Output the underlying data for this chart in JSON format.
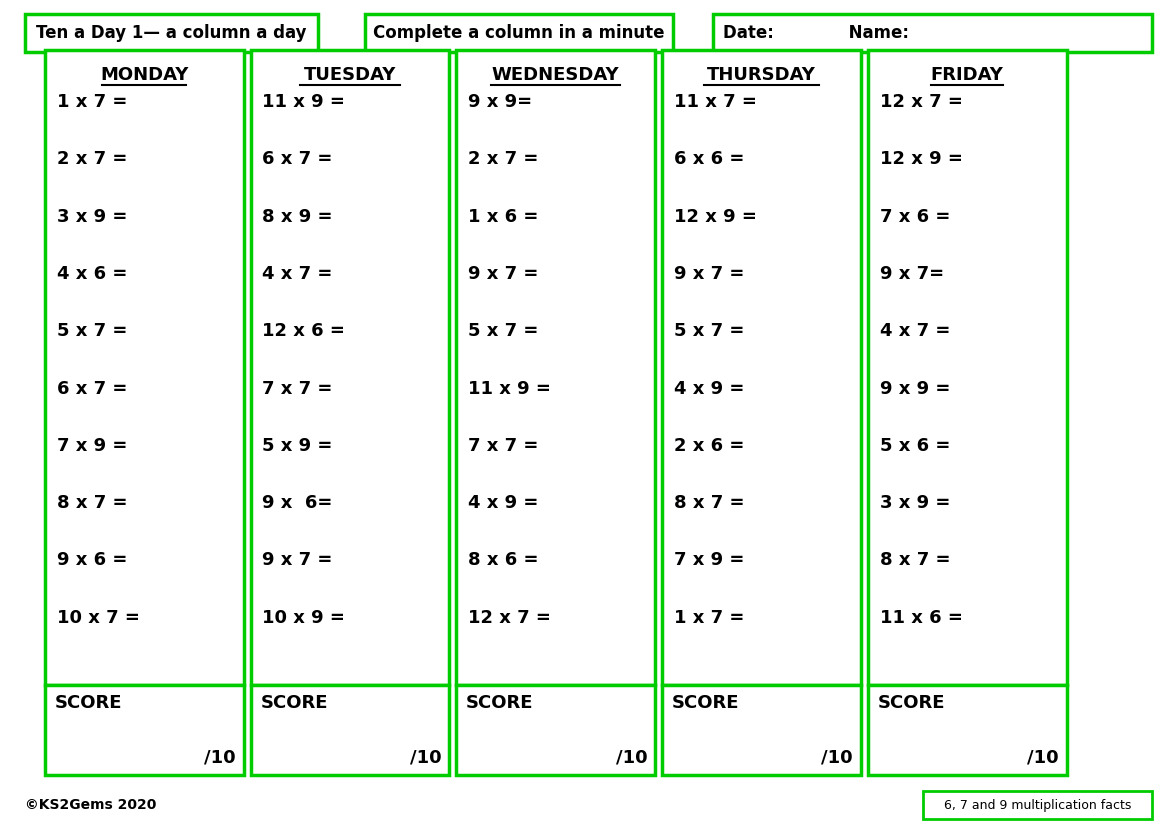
{
  "title_box1": "Ten a Day 1— a column a day",
  "title_box2": "Complete a column in a minute",
  "title_box3": "Date:             Name:",
  "footer_left": "©KS2Gems 2020",
  "footer_right": "6, 7 and 9 multiplication facts",
  "green": "#00CC00",
  "days": [
    "MONDAY",
    "TUESDAY",
    "WEDNESDAY",
    "THURSDAY",
    "FRIDAY"
  ],
  "questions": [
    [
      "1 x 7 =",
      "2 x 7 =",
      "3 x 9 =",
      "4 x 6 =",
      "5 x 7 =",
      "6 x 7 =",
      "7 x 9 =",
      "8 x 7 =",
      "9 x 6 =",
      "10 x 7 ="
    ],
    [
      "11 x 9 =",
      "6 x 7 =",
      "8 x 9 =",
      "4 x 7 =",
      "12 x 6 =",
      "7 x 7 =",
      "5 x 9 =",
      "9 x  6=",
      "9 x 7 =",
      "10 x 9 ="
    ],
    [
      "9 x 9=",
      "2 x 7 =",
      "1 x 6 =",
      "9 x 7 =",
      "5 x 7 =",
      "11 x 9 =",
      "7 x 7 =",
      "4 x 9 =",
      "8 x 6 =",
      "12 x 7 ="
    ],
    [
      "11 x 7 =",
      "6 x 6 =",
      "12 x 9 =",
      "9 x 7 =",
      "5 x 7 =",
      "4 x 9 =",
      "2 x 6 =",
      "8 x 7 =",
      "7 x 9 =",
      "1 x 7 ="
    ],
    [
      "12 x 7 =",
      "12 x 9 =",
      "7 x 6 =",
      "9 x 7=",
      "4 x 7 =",
      "9 x 9 =",
      "5 x 6 =",
      "3 x 9 =",
      "8 x 7 =",
      "11 x 6 ="
    ]
  ],
  "bg_color": "#ffffff",
  "text_color": "#000000",
  "font_size_questions": 13,
  "font_size_header": 13,
  "font_size_day": 13,
  "font_size_footer": 10,
  "font_size_title": 12,
  "font_size_score": 13
}
